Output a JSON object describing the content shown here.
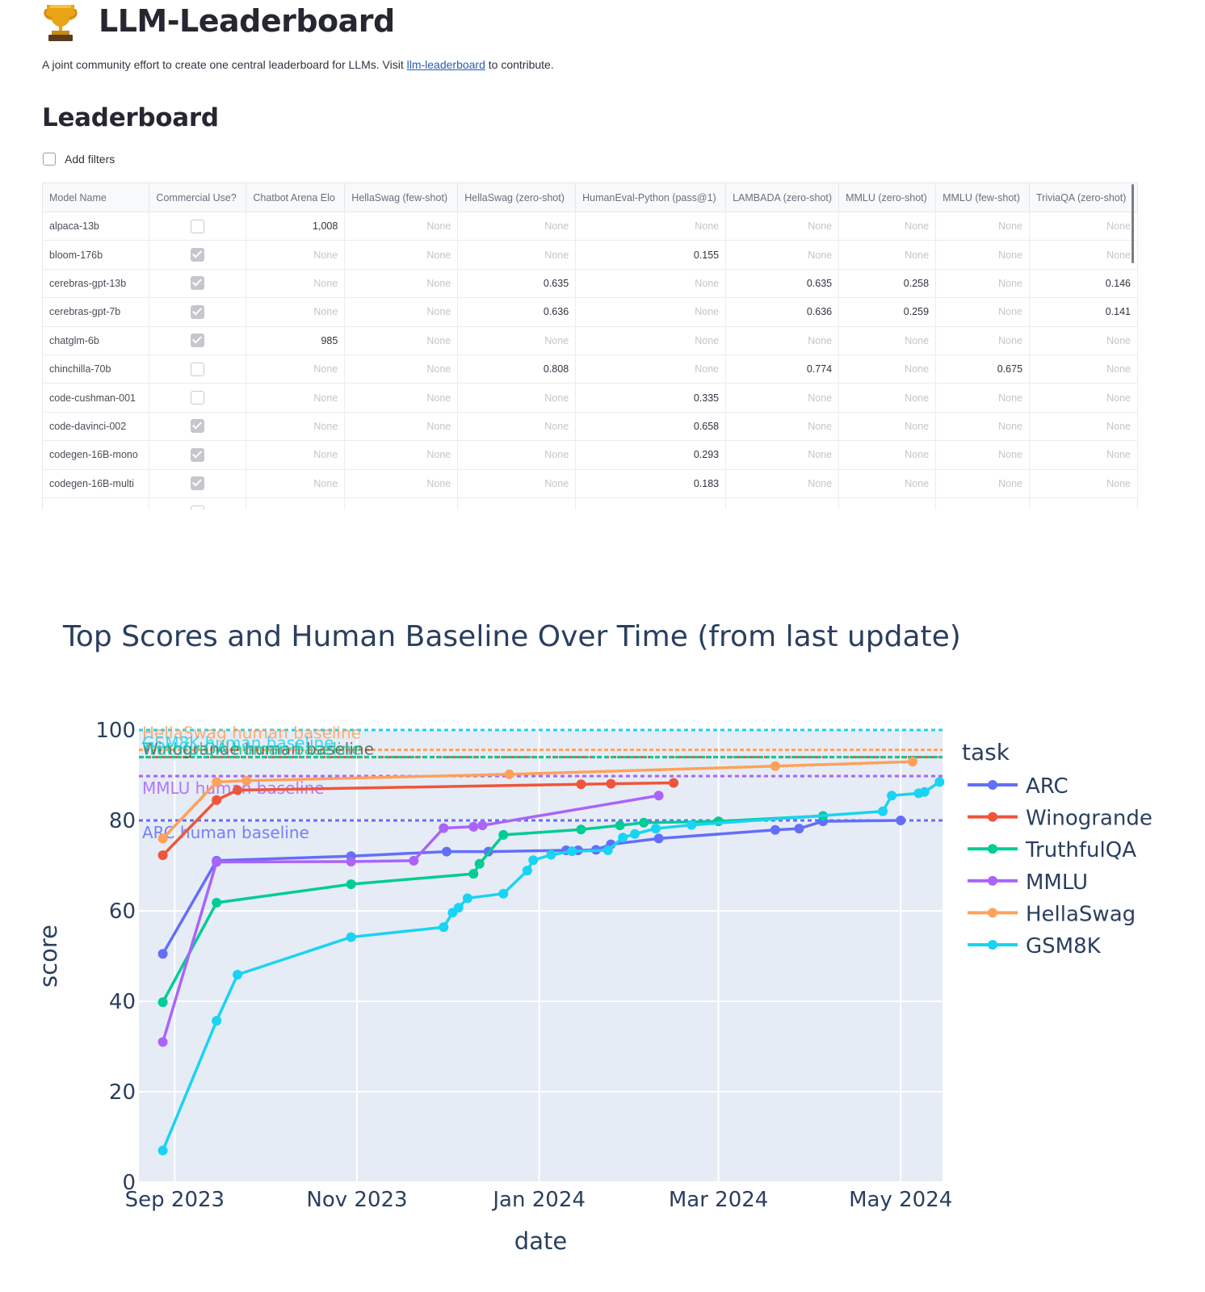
{
  "header": {
    "title": "LLM-Leaderboard",
    "description_before": "A joint community effort to create one central leaderboard for LLMs. Visit ",
    "description_link": "llm-leaderboard",
    "description_after": " to contribute."
  },
  "section_title": "Leaderboard",
  "filters": {
    "label": "Add filters",
    "checked": false
  },
  "table": {
    "columns": [
      "Model Name",
      "Commercial Use?",
      "Chatbot Arena Elo",
      "HellaSwag (few-shot)",
      "HellaSwag (zero-shot)",
      "HumanEval-Python (pass@1)",
      "LAMBADA (zero-shot)",
      "MMLU (zero-shot)",
      "MMLU (few-shot)",
      "TriviaQA (zero-shot)"
    ],
    "rows": [
      {
        "name": "alpaca-13b",
        "commercial": false,
        "values": [
          "1,008",
          "None",
          "None",
          "None",
          "None",
          "None",
          "None",
          "None"
        ]
      },
      {
        "name": "bloom-176b",
        "commercial": true,
        "values": [
          "None",
          "None",
          "None",
          "0.155",
          "None",
          "None",
          "None",
          "None"
        ]
      },
      {
        "name": "cerebras-gpt-13b",
        "commercial": true,
        "values": [
          "None",
          "None",
          "0.635",
          "None",
          "0.635",
          "0.258",
          "None",
          "0.146"
        ]
      },
      {
        "name": "cerebras-gpt-7b",
        "commercial": true,
        "values": [
          "None",
          "None",
          "0.636",
          "None",
          "0.636",
          "0.259",
          "None",
          "0.141"
        ]
      },
      {
        "name": "chatglm-6b",
        "commercial": true,
        "values": [
          "985",
          "None",
          "None",
          "None",
          "None",
          "None",
          "None",
          "None"
        ]
      },
      {
        "name": "chinchilla-70b",
        "commercial": false,
        "values": [
          "None",
          "None",
          "0.808",
          "None",
          "0.774",
          "None",
          "0.675",
          "None"
        ]
      },
      {
        "name": "code-cushman-001",
        "commercial": false,
        "values": [
          "None",
          "None",
          "None",
          "0.335",
          "None",
          "None",
          "None",
          "None"
        ]
      },
      {
        "name": "code-davinci-002",
        "commercial": true,
        "values": [
          "None",
          "None",
          "None",
          "0.658",
          "None",
          "None",
          "None",
          "None"
        ]
      },
      {
        "name": "codegen-16B-mono",
        "commercial": true,
        "values": [
          "None",
          "None",
          "None",
          "0.293",
          "None",
          "None",
          "None",
          "None"
        ]
      },
      {
        "name": "codegen-16B-multi",
        "commercial": true,
        "values": [
          "None",
          "None",
          "None",
          "0.183",
          "None",
          "None",
          "None",
          "None"
        ]
      }
    ]
  },
  "chart_data": {
    "type": "line",
    "title": "Top Scores and Human Baseline Over Time (from last update)",
    "xlabel": "date",
    "ylabel": "score",
    "x_ticks": [
      "Sep 2023",
      "Nov 2023",
      "Jan 2024",
      "Mar 2024",
      "May 2024"
    ],
    "y_ticks": [
      0,
      20,
      40,
      60,
      80,
      100
    ],
    "ylim": [
      0,
      100
    ],
    "xlim": [
      "2023-08-20",
      "2024-05-15"
    ],
    "grid": true,
    "legend_title": "task",
    "legend_position": "right",
    "series": [
      {
        "name": "ARC",
        "color": "#636efa",
        "points": [
          [
            "2023-08-28",
            50.5
          ],
          [
            "2023-09-15",
            71.1
          ],
          [
            "2023-10-30",
            72.1
          ],
          [
            "2023-12-01",
            73.1
          ],
          [
            "2023-12-15",
            73.1
          ],
          [
            "2024-01-10",
            73.4
          ],
          [
            "2024-01-14",
            73.4
          ],
          [
            "2024-01-20",
            73.5
          ],
          [
            "2024-01-25",
            74.7
          ],
          [
            "2024-02-10",
            76.0
          ],
          [
            "2024-03-20",
            77.9
          ],
          [
            "2024-03-28",
            78.2
          ],
          [
            "2024-04-05",
            79.8
          ],
          [
            "2024-05-01",
            80.0
          ]
        ],
        "baseline": 80.0,
        "baseline_label": "ARC human baseline"
      },
      {
        "name": "Winogrande",
        "color": "#ef553b",
        "points": [
          [
            "2023-08-28",
            72.3
          ],
          [
            "2023-09-15",
            84.5
          ],
          [
            "2023-09-22",
            86.7
          ],
          [
            "2024-01-15",
            88.0
          ],
          [
            "2024-01-25",
            88.1
          ],
          [
            "2024-02-15",
            88.3
          ]
        ],
        "baseline": 94.0,
        "baseline_label": "Winogrande human baseline"
      },
      {
        "name": "TruthfulQA",
        "color": "#00cc96",
        "points": [
          [
            "2023-08-28",
            39.8
          ],
          [
            "2023-09-15",
            61.8
          ],
          [
            "2023-10-30",
            65.9
          ],
          [
            "2023-12-10",
            68.2
          ],
          [
            "2023-12-12",
            70.4
          ],
          [
            "2023-12-20",
            76.8
          ],
          [
            "2024-01-15",
            78.0
          ],
          [
            "2024-01-28",
            78.9
          ],
          [
            "2024-02-05",
            79.5
          ],
          [
            "2024-03-01",
            79.8
          ],
          [
            "2024-04-05",
            81.0
          ]
        ],
        "baseline": 94.0,
        "baseline_label": "TruthfulQA human baseline"
      },
      {
        "name": "MMLU",
        "color": "#ab63fa",
        "points": [
          [
            "2023-08-28",
            31.0
          ],
          [
            "2023-09-15",
            70.8
          ],
          [
            "2023-10-30",
            70.9
          ],
          [
            "2023-11-20",
            71.1
          ],
          [
            "2023-11-30",
            78.3
          ],
          [
            "2023-12-10",
            78.6
          ],
          [
            "2023-12-13",
            78.9
          ],
          [
            "2024-02-10",
            85.5
          ]
        ],
        "baseline": 89.8,
        "baseline_label": "MMLU human baseline"
      },
      {
        "name": "HellaSwag",
        "color": "#ffa15a",
        "points": [
          [
            "2023-08-28",
            76.0
          ],
          [
            "2023-09-15",
            88.5
          ],
          [
            "2023-09-25",
            88.8
          ],
          [
            "2023-12-22",
            90.2
          ],
          [
            "2024-03-20",
            92.0
          ],
          [
            "2024-05-05",
            93.0
          ]
        ],
        "baseline": 95.6,
        "baseline_label": "HellaSwag human baseline"
      },
      {
        "name": "GSM8K",
        "color": "#19d3f3",
        "points": [
          [
            "2023-08-28",
            7.0
          ],
          [
            "2023-09-15",
            35.7
          ],
          [
            "2023-09-22",
            45.9
          ],
          [
            "2023-10-30",
            54.2
          ],
          [
            "2023-11-30",
            56.4
          ],
          [
            "2023-12-03",
            59.6
          ],
          [
            "2023-12-05",
            60.7
          ],
          [
            "2023-12-08",
            62.8
          ],
          [
            "2023-12-20",
            63.8
          ],
          [
            "2023-12-28",
            68.9
          ],
          [
            "2023-12-30",
            71.2
          ],
          [
            "2024-01-05",
            72.4
          ],
          [
            "2024-01-12",
            73.2
          ],
          [
            "2024-01-24",
            73.4
          ],
          [
            "2024-01-29",
            76.2
          ],
          [
            "2024-02-02",
            77.0
          ],
          [
            "2024-02-09",
            78.2
          ],
          [
            "2024-02-21",
            79.0
          ],
          [
            "2024-04-25",
            82.0
          ],
          [
            "2024-04-28",
            85.5
          ],
          [
            "2024-05-07",
            86.0
          ],
          [
            "2024-05-09",
            86.3
          ],
          [
            "2024-05-14",
            88.5
          ]
        ],
        "baseline": 100.0,
        "baseline_label": "GSM8K human baseline"
      }
    ],
    "colors": {
      "plot_bg": "#e5ecf6",
      "grid": "#ffffff",
      "text": "#2a3f5f"
    }
  }
}
